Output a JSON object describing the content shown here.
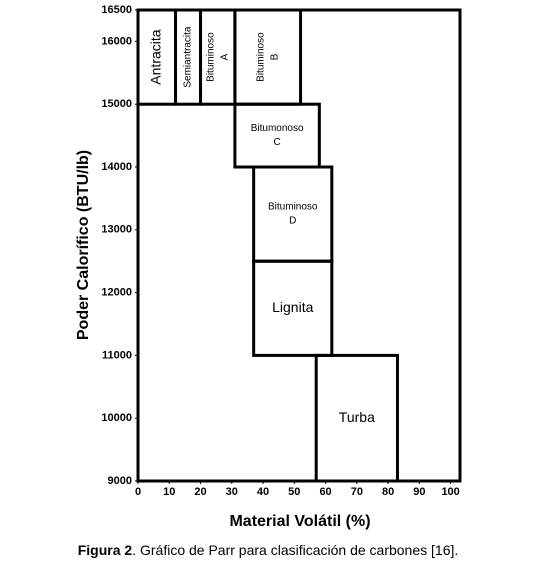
{
  "chart_data": {
    "type": "region",
    "x_label": "Material Volátil (%)",
    "y_label": "Poder Calorífico (BTU/lb)",
    "xlim": [
      0,
      103
    ],
    "ylim": [
      9000,
      16500
    ],
    "xticks": [
      0,
      10,
      20,
      30,
      40,
      50,
      60,
      70,
      80,
      90,
      100
    ],
    "yticks": [
      9000,
      10000,
      11000,
      12000,
      13000,
      14000,
      15000,
      16000,
      16500
    ],
    "color": "#000000",
    "regions": [
      {
        "label": [
          "Antracita"
        ],
        "x": [
          0,
          12
        ],
        "y": [
          15000,
          16500
        ],
        "rotated": true
      },
      {
        "label": [
          "Semiantracita"
        ],
        "x": [
          12,
          20
        ],
        "y": [
          15000,
          16500
        ],
        "rotated": true
      },
      {
        "label": [
          "Bituminoso",
          "A"
        ],
        "x": [
          20,
          31
        ],
        "y": [
          15000,
          16500
        ],
        "rotated": true
      },
      {
        "label": [
          "Bituminoso",
          "B"
        ],
        "x": [
          31,
          52
        ],
        "y": [
          15000,
          16500
        ],
        "rotated": true
      },
      {
        "label": [
          "Bitumonoso",
          "C"
        ],
        "x": [
          31,
          58
        ],
        "y": [
          14000,
          15000
        ],
        "rotated": false
      },
      {
        "label": [
          "Bituminoso",
          "D"
        ],
        "x": [
          37,
          62
        ],
        "y": [
          12500,
          14000
        ],
        "rotated": false
      },
      {
        "label": [
          "Lignita"
        ],
        "x": [
          37,
          62
        ],
        "y": [
          11000,
          12500
        ],
        "rotated": false
      },
      {
        "label": [
          "Turba"
        ],
        "x": [
          57,
          83
        ],
        "y": [
          9000,
          11000
        ],
        "rotated": false
      }
    ]
  },
  "caption": {
    "label": "Figura 2",
    "text": ". Gráfico de Parr para clasificación de carbones [16]."
  }
}
